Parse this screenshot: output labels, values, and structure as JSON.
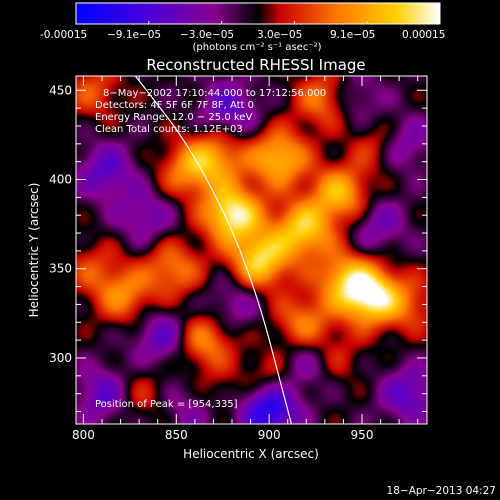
{
  "colorbar": {
    "tick_labels": [
      "-0.00015",
      "−9.1e−05",
      "−3.0e−05",
      "3.0e−05",
      "9.1e−05",
      "0.00015"
    ],
    "units_label": "(photons cm⁻² s⁻¹ asec⁻²)",
    "colors": [
      "#0000ff",
      "#4a00d8",
      "#8a0090",
      "#000000",
      "#c80000",
      "#ff7a00",
      "#ffd000",
      "#ffffff"
    ]
  },
  "chart_data": {
    "type": "heatmap",
    "title": "Reconstructed RHESSI Image",
    "xlabel": "Heliocentric X (arcsec)",
    "ylabel": "Heliocentric Y (arcsec)",
    "xlim": [
      796,
      985
    ],
    "ylim": [
      263,
      458
    ],
    "x_ticks": [
      800,
      850,
      900,
      950
    ],
    "y_ticks": [
      300,
      350,
      400,
      450
    ],
    "color_range": [
      -0.00015,
      0.00015
    ],
    "grid": false,
    "annotations": [
      "8−May−2002 17:10:44.000 to 17:12:56.000",
      "Detectors: 4F 5F 6F 7F 8F, Att 0",
      "Energy Range: 12.0 − 25.0 keV",
      "Clean    Total counts: 1.12E+03"
    ],
    "peak_label": "Position of Peak = [954,335]",
    "limb_points": [
      [
        828,
        458
      ],
      [
        860,
        415
      ],
      [
        890,
        350
      ],
      [
        912,
        263
      ]
    ],
    "peaks": [
      {
        "x": 880,
        "y": 381,
        "v": 1.0
      },
      {
        "x": 895,
        "y": 355,
        "v": 0.85
      },
      {
        "x": 918,
        "y": 372,
        "v": 0.8
      },
      {
        "x": 938,
        "y": 392,
        "v": 0.7
      },
      {
        "x": 954,
        "y": 335,
        "v": 1.0
      },
      {
        "x": 905,
        "y": 412,
        "v": 0.75
      },
      {
        "x": 870,
        "y": 412,
        "v": 0.6
      },
      {
        "x": 930,
        "y": 445,
        "v": 0.55
      },
      {
        "x": 960,
        "y": 420,
        "v": 0.45
      },
      {
        "x": 848,
        "y": 350,
        "v": 0.5
      },
      {
        "x": 822,
        "y": 335,
        "v": 0.5
      },
      {
        "x": 865,
        "y": 310,
        "v": 0.55
      },
      {
        "x": 918,
        "y": 320,
        "v": 0.5
      },
      {
        "x": 940,
        "y": 345,
        "v": 0.6
      },
      {
        "x": 900,
        "y": 288,
        "v": 0.35
      },
      {
        "x": 868,
        "y": 278,
        "v": 0.3
      },
      {
        "x": 828,
        "y": 280,
        "v": 0.3
      },
      {
        "x": 805,
        "y": 350,
        "v": 0.3
      },
      {
        "x": 805,
        "y": 450,
        "v": 0.35
      },
      {
        "x": 855,
        "y": 405,
        "v": 0.45
      },
      {
        "x": 975,
        "y": 330,
        "v": 0.35
      },
      {
        "x": 935,
        "y": 300,
        "v": 0.25
      },
      {
        "x": 833,
        "y": 380,
        "v": -0.35
      },
      {
        "x": 878,
        "y": 440,
        "v": -0.45
      },
      {
        "x": 842,
        "y": 312,
        "v": -0.45
      },
      {
        "x": 900,
        "y": 272,
        "v": -0.85
      },
      {
        "x": 860,
        "y": 273,
        "v": -0.4
      },
      {
        "x": 812,
        "y": 280,
        "v": -0.5
      },
      {
        "x": 975,
        "y": 280,
        "v": -0.45
      },
      {
        "x": 970,
        "y": 420,
        "v": -0.5
      },
      {
        "x": 958,
        "y": 375,
        "v": -0.35
      },
      {
        "x": 920,
        "y": 298,
        "v": -0.35
      },
      {
        "x": 812,
        "y": 405,
        "v": -0.45
      },
      {
        "x": 880,
        "y": 330,
        "v": -0.3
      },
      {
        "x": 945,
        "y": 445,
        "v": -0.35
      }
    ]
  },
  "timestamp": "18−Apr−2013 04:27"
}
